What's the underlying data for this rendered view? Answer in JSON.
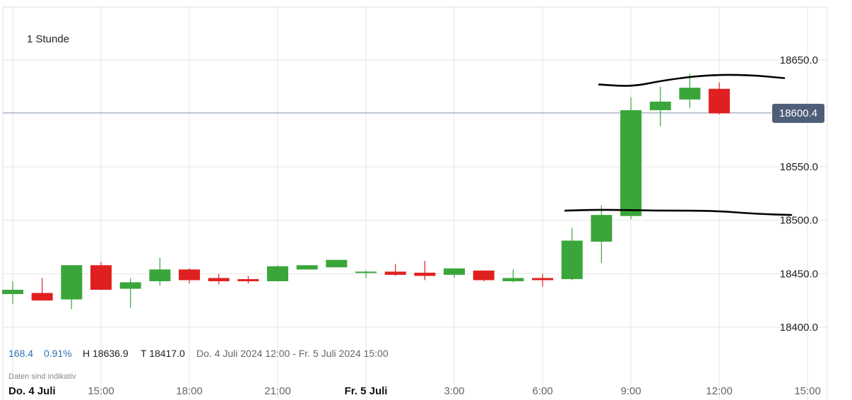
{
  "timeframe_label": "1 Stunde",
  "stats": {
    "change": "168.4",
    "change_pct": "0.91%",
    "high": "H 18636.9",
    "low": "T 18417.0",
    "range": "Do. 4 Juli 2024 12:00 - Fr. 5 Juli 2024 15:00"
  },
  "disclaimer": "Daten sind indikativ",
  "current_price_label": "18600.4",
  "colors": {
    "up": "#3aa63a",
    "down": "#e02020",
    "grid": "#e6e6e6",
    "price_line": "#8c9bb0",
    "price_tag_bg": "#4e5d78",
    "change_text": "#2f6fb0",
    "drawing": "#000000"
  },
  "chart_data": {
    "type": "candlestick",
    "y_ticks": [
      "18400.0",
      "18450.0",
      "18500.0",
      "18550.0",
      "18600.4",
      "18650.0"
    ],
    "ylim": [
      18383,
      18700
    ],
    "x_ticks": [
      "Do. 4 Juli",
      "15:00",
      "18:00",
      "21:00",
      "Fr. 5 Juli",
      "3:00",
      "6:00",
      "9:00",
      "12:00",
      "15:00"
    ],
    "x_tick_hours": [
      0,
      3,
      6,
      9,
      12,
      15,
      18,
      21,
      24,
      27
    ],
    "current_price": 18600.4,
    "candles": [
      {
        "t": 0,
        "o": 18431,
        "h": 18443,
        "l": 18422,
        "c": 18435
      },
      {
        "t": 1,
        "o": 18432,
        "h": 18446,
        "l": 18425,
        "c": 18425
      },
      {
        "t": 2,
        "o": 18426,
        "h": 18458,
        "l": 18417,
        "c": 18458
      },
      {
        "t": 3,
        "o": 18458,
        "h": 18461,
        "l": 18435,
        "c": 18435
      },
      {
        "t": 4,
        "o": 18436,
        "h": 18446,
        "l": 18418,
        "c": 18442
      },
      {
        "t": 5,
        "o": 18443,
        "h": 18465,
        "l": 18439,
        "c": 18454
      },
      {
        "t": 6,
        "o": 18454,
        "h": 18455,
        "l": 18441,
        "c": 18444
      },
      {
        "t": 7,
        "o": 18446,
        "h": 18450,
        "l": 18440,
        "c": 18443
      },
      {
        "t": 8,
        "o": 18445,
        "h": 18448,
        "l": 18441,
        "c": 18443
      },
      {
        "t": 9,
        "o": 18443,
        "h": 18458,
        "l": 18443,
        "c": 18457
      },
      {
        "t": 10,
        "o": 18454,
        "h": 18458,
        "l": 18454,
        "c": 18458
      },
      {
        "t": 11,
        "o": 18456,
        "h": 18463,
        "l": 18456,
        "c": 18463
      },
      {
        "t": 12,
        "o": 18451,
        "h": 18453,
        "l": 18446,
        "c": 18452
      },
      {
        "t": 13,
        "o": 18452,
        "h": 18459,
        "l": 18448,
        "c": 18449
      },
      {
        "t": 14,
        "o": 18451,
        "h": 18462,
        "l": 18444,
        "c": 18448
      },
      {
        "t": 15,
        "o": 18449,
        "h": 18455,
        "l": 18446,
        "c": 18455
      },
      {
        "t": 16,
        "o": 18453,
        "h": 18453,
        "l": 18443,
        "c": 18444
      },
      {
        "t": 17,
        "o": 18443,
        "h": 18454,
        "l": 18442,
        "c": 18446
      },
      {
        "t": 18,
        "o": 18446,
        "h": 18450,
        "l": 18438,
        "c": 18444
      },
      {
        "t": 19,
        "o": 18445,
        "h": 18493,
        "l": 18444,
        "c": 18481
      },
      {
        "t": 20,
        "o": 18480,
        "h": 18514,
        "l": 18460,
        "c": 18505
      },
      {
        "t": 21,
        "o": 18504,
        "h": 18615,
        "l": 18501,
        "c": 18603
      },
      {
        "t": 22,
        "o": 18603,
        "h": 18625,
        "l": 18588,
        "c": 18611
      },
      {
        "t": 23,
        "o": 18613,
        "h": 18637,
        "l": 18605,
        "c": 18624
      },
      {
        "t": 24,
        "o": 18623,
        "h": 18629,
        "l": 18599,
        "c": 18600
      }
    ]
  }
}
